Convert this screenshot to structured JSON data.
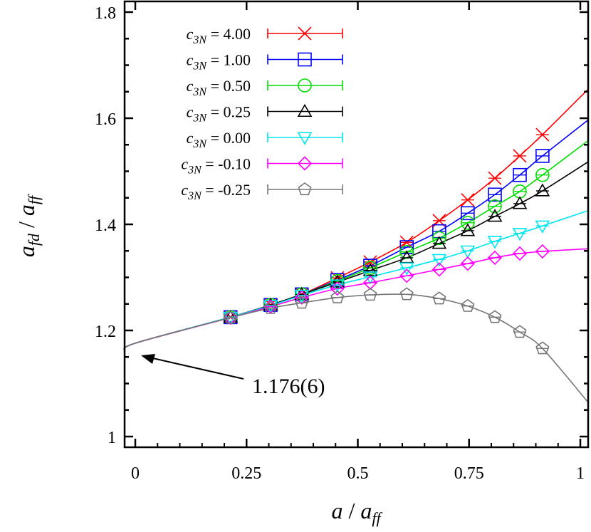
{
  "chart_data": {
    "type": "line",
    "xlabel": "a / a_ff",
    "ylabel": "a_fd / a_ff",
    "xlim": [
      -0.024,
      1.018
    ],
    "ylim": [
      0.98,
      1.82
    ],
    "xticks": [
      "0",
      "0.25",
      "0.5",
      "0.75",
      "1"
    ],
    "xtick_values": [
      0,
      0.25,
      0.5,
      0.75,
      1
    ],
    "yticks": [
      "1",
      "1.2",
      "1.4",
      "1.6",
      "1.8"
    ],
    "ytick_values": [
      1,
      1.2,
      1.4,
      1.6,
      1.8
    ],
    "grid": false,
    "legend_placement": "top-left",
    "annotation": {
      "text": "1.176(6)",
      "x": 0,
      "y": 1.176
    },
    "x": [
      0.214,
      0.304,
      0.374,
      0.454,
      0.528,
      0.61,
      0.683,
      0.747,
      0.808,
      0.864,
      0.915
    ],
    "series": [
      {
        "name": "c_3N = 4.00",
        "color": "#ff0000",
        "marker": "cross",
        "values": [
          1.225,
          1.248,
          1.268,
          1.299,
          1.329,
          1.366,
          1.407,
          1.446,
          1.487,
          1.529,
          1.569
        ],
        "fit_end": 1.655
      },
      {
        "name": "c_3N = 1.00",
        "color": "#0000ff",
        "marker": "square",
        "values": [
          1.225,
          1.248,
          1.268,
          1.295,
          1.322,
          1.357,
          1.387,
          1.421,
          1.456,
          1.493,
          1.529
        ],
        "fit_end": 1.597
      },
      {
        "name": "c_3N = 0.50",
        "color": "#00dd00",
        "marker": "circle",
        "values": [
          1.225,
          1.248,
          1.268,
          1.293,
          1.318,
          1.348,
          1.374,
          1.403,
          1.434,
          1.462,
          1.493
        ],
        "fit_end": 1.558
      },
      {
        "name": "c_3N = 0.25",
        "color": "#000000",
        "marker": "triangle-up",
        "values": [
          1.225,
          1.248,
          1.268,
          1.291,
          1.313,
          1.337,
          1.364,
          1.388,
          1.415,
          1.439,
          1.463
        ],
        "fit_end": 1.518
      },
      {
        "name": "c_3N = 0.00",
        "color": "#00e5ee",
        "marker": "triangle-down",
        "values": [
          1.225,
          1.247,
          1.266,
          1.286,
          1.301,
          1.318,
          1.334,
          1.35,
          1.368,
          1.383,
          1.397
        ],
        "fit_end": 1.426
      },
      {
        "name": "c_3N = -0.10",
        "color": "#ff00ff",
        "marker": "diamond",
        "values": [
          1.224,
          1.245,
          1.262,
          1.279,
          1.29,
          1.303,
          1.315,
          1.326,
          1.337,
          1.345,
          1.349
        ],
        "fit_end": 1.354
      },
      {
        "name": "c_3N = -0.25",
        "color": "#777777",
        "marker": "pentagon",
        "values": [
          1.224,
          1.242,
          1.252,
          1.262,
          1.267,
          1.268,
          1.26,
          1.246,
          1.225,
          1.197,
          1.166
        ],
        "fit_end": 1.064
      }
    ],
    "legend_labels": [
      {
        "var": "c",
        "sub": "3N",
        "rest": " = 4.00"
      },
      {
        "var": "c",
        "sub": "3N",
        "rest": " = 1.00"
      },
      {
        "var": "c",
        "sub": "3N",
        "rest": " = 0.50"
      },
      {
        "var": "c",
        "sub": "3N",
        "rest": " = 0.25"
      },
      {
        "var": "c",
        "sub": "3N",
        "rest": " = 0.00"
      },
      {
        "var": "c",
        "sub": "3N",
        "rest": " = -0.10"
      },
      {
        "var": "c",
        "sub": "3N",
        "rest": " = -0.25"
      }
    ],
    "axis_label_parts": {
      "x": {
        "a": "a",
        "sep": " / ",
        "b": "a",
        "bsub": "ff"
      },
      "y": {
        "a": "a",
        "asub": "fd",
        "sep": " / ",
        "b": "a",
        "bsub": "ff"
      }
    }
  }
}
